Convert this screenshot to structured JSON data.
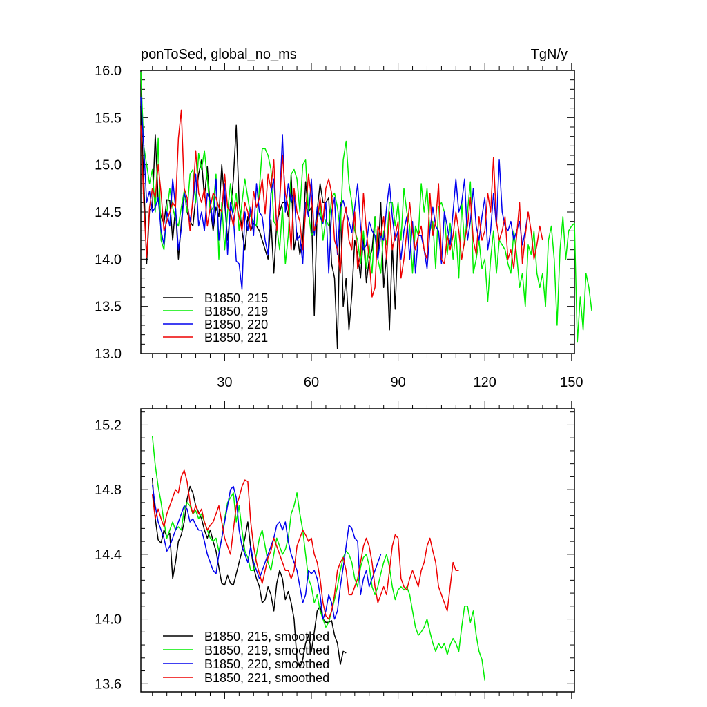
{
  "figure": {
    "title_left": "ponToSed, global_no_ms",
    "title_right": "TgN/y"
  },
  "chart_data": [
    {
      "type": "line",
      "title": "ponToSed, global_no_ms",
      "units": "TgN/y",
      "xlim": [
        1,
        151
      ],
      "ylim": [
        13.0,
        16.0
      ],
      "x_ticks": [
        30,
        60,
        90,
        120,
        150
      ],
      "x_tick_labels": [
        "30",
        "60",
        "90",
        "120",
        "150"
      ],
      "y_ticks": [
        13.0,
        13.5,
        14.0,
        14.5,
        15.0,
        15.5,
        16.0
      ],
      "y_tick_labels": [
        "13.0",
        "13.5",
        "14.0",
        "14.5",
        "15.0",
        "15.5",
        "16.0"
      ],
      "legend_position": "bottom-left",
      "series": [
        {
          "name": "B1850, 215",
          "color": "#000000",
          "x_start": 1,
          "values": [
            15.62,
            14.85,
            13.95,
            14.52,
            14.55,
            15.32,
            14.62,
            14.45,
            14.38,
            14.63,
            14.62,
            14.2,
            14.55,
            14.0,
            14.38,
            14.72,
            14.5,
            14.4,
            14.35,
            14.65,
            14.9,
            15.05,
            14.65,
            14.98,
            14.55,
            14.3,
            14.55,
            14.45,
            15.0,
            14.6,
            14.2,
            14.5,
            14.85,
            15.42,
            14.6,
            14.3,
            14.1,
            14.45,
            14.3,
            14.38,
            14.35,
            14.3,
            14.2,
            14.1,
            14.0,
            14.42,
            13.85,
            14.38,
            14.5,
            14.6,
            14.6,
            14.45,
            14.9,
            14.1,
            14.28,
            14.05,
            14.2,
            14.82,
            14.5,
            14.55,
            13.4,
            14.52,
            14.8,
            14.6,
            14.6,
            14.65,
            13.95,
            13.8,
            13.05,
            14.6,
            13.5,
            13.8,
            13.25,
            13.62,
            14.2,
            14.05,
            13.8,
            14.25,
            13.75,
            14.0,
            14.1,
            14.45,
            14.0,
            14.6,
            13.7,
            14.05,
            13.25,
            14.15,
            13.47,
            14.3
          ]
        },
        {
          "name": "B1850, 219",
          "color": "#00ee00",
          "x_start": 1,
          "values": [
            15.98,
            15.2,
            15.0,
            14.8,
            14.95,
            14.5,
            15.28,
            14.2,
            14.1,
            14.5,
            14.75,
            14.55,
            14.42,
            14.35,
            14.55,
            14.72,
            14.5,
            14.9,
            14.95,
            14.6,
            15.12,
            14.95,
            15.15,
            14.85,
            14.5,
            14.55,
            14.9,
            14.0,
            14.6,
            14.1,
            14.5,
            14.8,
            14.5,
            14.7,
            14.3,
            14.6,
            14.85,
            14.65,
            14.45,
            14.4,
            14.35,
            14.75,
            15.17,
            15.17,
            15.1,
            14.95,
            14.4,
            14.35,
            14.1,
            14.55,
            13.95,
            14.25,
            14.9,
            14.95,
            14.85,
            14.5,
            15.0,
            15.05,
            14.5,
            14.25,
            14.3,
            14.4,
            14.6,
            14.2,
            14.42,
            14.35,
            14.65,
            14.7,
            14.55,
            14.3,
            15.05,
            15.25,
            14.8,
            14.6,
            14.3,
            14.2,
            13.95,
            14.3,
            13.9,
            14.15,
            13.85,
            14.45,
            14.0,
            13.85,
            14.3,
            14.15,
            14.6,
            14.6,
            14.35,
            14.6,
            14.2,
            14.75,
            14.5,
            14.35,
            13.85,
            14.35,
            14.25,
            14.8,
            14.5,
            14.75,
            14.3,
            14.4,
            13.9,
            14.55,
            14.6,
            14.5,
            14.05,
            14.38,
            14.0,
            14.3,
            13.8,
            14.6,
            14.15,
            14.5,
            14.82,
            13.85,
            14.0,
            14.2,
            13.9,
            14.0,
            13.55,
            14.0,
            14.3,
            13.85,
            14.2,
            14.15,
            14.1,
            13.95,
            13.85,
            14.3,
            14.05,
            13.7,
            13.85,
            13.5,
            14.15,
            14.05,
            14.3,
            13.85,
            13.7,
            13.85,
            13.5,
            14.2,
            14.35,
            14.0,
            13.3,
            14.1,
            14.45,
            14.0,
            14.3,
            14.35,
            14.38,
            13.12,
            13.6,
            13.25,
            13.85,
            13.7,
            13.45
          ]
        },
        {
          "name": "B1850, 220",
          "color": "#0000ee",
          "x_start": 1,
          "values": [
            15.72,
            15.2,
            14.6,
            14.72,
            14.5,
            14.55,
            14.65,
            14.3,
            14.15,
            14.5,
            14.35,
            14.85,
            14.55,
            14.1,
            14.32,
            14.7,
            14.6,
            14.4,
            14.6,
            14.9,
            14.35,
            14.5,
            14.3,
            14.7,
            14.62,
            14.35,
            14.85,
            14.2,
            14.5,
            14.8,
            14.05,
            14.6,
            14.45,
            13.98,
            13.95,
            13.68,
            14.5,
            14.3,
            14.55,
            14.25,
            14.8,
            14.5,
            14.45,
            14.2,
            14.05,
            14.7,
            14.85,
            14.35,
            14.6,
            15.32,
            14.5,
            14.8,
            14.6,
            14.72,
            14.2,
            14.25,
            13.95,
            14.6,
            14.45,
            14.85,
            14.25,
            14.55,
            14.45,
            14.38,
            14.6,
            13.85,
            14.5,
            14.65,
            14.05,
            14.55,
            14.62,
            14.5,
            14.4,
            14.28,
            14.55,
            14.8,
            14.35,
            14.1,
            14.15,
            14.4,
            14.3,
            14.25,
            14.0,
            14.25,
            14.2,
            14.55,
            14.8,
            14.45,
            14.2,
            14.3,
            14.0,
            14.3,
            14.45,
            14.0,
            14.4,
            13.85,
            14.25,
            14.25,
            14.1,
            13.9,
            14.3,
            14.55,
            14.35,
            14.3,
            13.95,
            14.5,
            14.35,
            14.15,
            14.5,
            14.85,
            14.5,
            14.6,
            14.85,
            14.2,
            14.4,
            14.75,
            14.35,
            14.2,
            14.45,
            14.65,
            14.1,
            14.3,
            14.7,
            14.35,
            15.05,
            14.5,
            14.35,
            14.3,
            14.4,
            14.2,
            14.3,
            14.4,
            14.15,
            14.3,
            14.5
          ]
        },
        {
          "name": "B1850, 221",
          "color": "#ee0000",
          "x_start": 1,
          "values": [
            15.42,
            14.6,
            14.02,
            14.55,
            14.75,
            14.65,
            15.0,
            14.7,
            14.3,
            14.4,
            14.5,
            14.6,
            14.55,
            15.28,
            15.58,
            14.75,
            14.65,
            14.3,
            14.65,
            15.15,
            14.7,
            14.6,
            14.75,
            14.35,
            14.55,
            14.7,
            14.65,
            14.55,
            14.5,
            14.9,
            14.55,
            14.5,
            14.35,
            14.6,
            14.45,
            14.3,
            14.6,
            14.5,
            14.3,
            14.72,
            14.55,
            14.65,
            14.85,
            14.48,
            14.9,
            14.75,
            15.05,
            14.3,
            14.6,
            15.1,
            14.7,
            14.55,
            14.1,
            14.75,
            14.5,
            14.4,
            14.1,
            14.5,
            14.9,
            14.65,
            14.3,
            14.4,
            14.65,
            14.4,
            14.75,
            14.85,
            14.7,
            14.2,
            14.1,
            13.85,
            14.4,
            14.55,
            14.2,
            14.1,
            14.5,
            13.9,
            14.05,
            14.7,
            14.3,
            14.0,
            13.6,
            13.7,
            14.35,
            14.25,
            14.45,
            14.0,
            14.5,
            14.1,
            14.25,
            14.4,
            13.8,
            14.0,
            14.3,
            14.6,
            14.3,
            14.1,
            14.25,
            14.35,
            14.1,
            14.0,
            14.7,
            14.25,
            14.4,
            14.8,
            14.0,
            13.95,
            14.25,
            14.1,
            14.25,
            14.5,
            14.3,
            14.0,
            14.2,
            14.35,
            14.65,
            14.2,
            14.05,
            14.45,
            14.2,
            14.3,
            14.7,
            14.5,
            15.08,
            14.4,
            14.2,
            14.3,
            14.45,
            14.0,
            14.1,
            13.9,
            14.25,
            14.6,
            13.95,
            14.25,
            14.5,
            14.3,
            14.0,
            14.15,
            14.35,
            14.2
          ]
        }
      ]
    },
    {
      "type": "line",
      "title": "",
      "units": "TgN/y",
      "xlim": [
        1,
        151
      ],
      "ylim": [
        13.55,
        15.3
      ],
      "x_ticks": [
        30,
        60,
        90,
        120,
        150
      ],
      "y_ticks": [
        13.6,
        14.0,
        14.4,
        14.8,
        15.2
      ],
      "y_tick_labels": [
        "13.6",
        "14.0",
        "14.4",
        "14.8",
        "15.2"
      ],
      "legend_position": "bottom-left",
      "series": [
        {
          "name": "B1850, 215, smoothed",
          "color": "#000000",
          "x_start": 5,
          "values": [
            14.87,
            14.62,
            14.49,
            14.47,
            14.55,
            14.51,
            14.53,
            14.25,
            14.35,
            14.48,
            14.52,
            14.6,
            14.74,
            14.82,
            14.78,
            14.7,
            14.66,
            14.62,
            14.55,
            14.5,
            14.55,
            14.48,
            14.42,
            14.32,
            14.22,
            14.21,
            14.27,
            14.22,
            14.21,
            14.28,
            14.35,
            14.42,
            14.5,
            14.6,
            14.44,
            14.32,
            14.25,
            14.2,
            14.1,
            14.12,
            14.2,
            14.15,
            14.05,
            14.22,
            14.3,
            14.25,
            14.12,
            14.17,
            14.1,
            14.0,
            13.75,
            13.7,
            13.75,
            13.85,
            13.9,
            13.8,
            13.92,
            14.05,
            14.08,
            14.0,
            13.98,
            13.98,
            13.99,
            13.9,
            13.85,
            13.72,
            13.8,
            13.79
          ]
        },
        {
          "name": "B1850, 219",
          "name_label": "B1850, 219, smoothed",
          "color": "#00ee00",
          "x_start": 5,
          "values": [
            15.13,
            14.95,
            14.82,
            14.72,
            14.6,
            14.5,
            14.55,
            14.6,
            14.55,
            14.57,
            14.55,
            14.68,
            14.72,
            14.7,
            14.65,
            14.67,
            14.62,
            14.65,
            14.6,
            14.55,
            14.5,
            14.48,
            14.5,
            14.42,
            14.5,
            14.62,
            14.72,
            14.75,
            14.78,
            14.6,
            14.7,
            14.55,
            14.42,
            14.38,
            14.3,
            14.3,
            14.4,
            14.5,
            14.55,
            14.45,
            14.35,
            14.3,
            14.4,
            14.5,
            14.45,
            14.4,
            14.43,
            14.5,
            14.65,
            14.7,
            14.78,
            14.65,
            14.55,
            14.4,
            14.25,
            14.2,
            14.1,
            14.15,
            14.05,
            14.0,
            13.95,
            13.98,
            14.05,
            14.12,
            14.2,
            14.3,
            14.38,
            14.42,
            14.4,
            14.35,
            14.25,
            14.2,
            14.32,
            14.38,
            14.4,
            14.33,
            14.2,
            14.15,
            14.2,
            14.28,
            14.35,
            14.4,
            14.32,
            14.2,
            14.12,
            14.18,
            14.2,
            14.18,
            14.2,
            14.15,
            14.05,
            13.95,
            13.9,
            13.92,
            13.95,
            14.0,
            13.92,
            13.85,
            13.8,
            13.85,
            13.82,
            13.85,
            13.78,
            13.84,
            13.88,
            13.85,
            13.8,
            13.95,
            14.08,
            14.08,
            13.98,
            14.05,
            13.9,
            13.8,
            13.75,
            13.62
          ]
        },
        {
          "name": "B1850, 220",
          "name_label": "B1850, 220, smoothed",
          "color": "#0000ee",
          "x_start": 5,
          "values": [
            14.83,
            14.7,
            14.6,
            14.55,
            14.5,
            14.42,
            14.45,
            14.5,
            14.55,
            14.6,
            14.65,
            14.7,
            14.68,
            14.6,
            14.62,
            14.58,
            14.55,
            14.55,
            14.48,
            14.4,
            14.35,
            14.3,
            14.28,
            14.4,
            14.5,
            14.6,
            14.7,
            14.8,
            14.82,
            14.75,
            14.55,
            14.45,
            14.4,
            14.35,
            14.45,
            14.35,
            14.3,
            14.25,
            14.3,
            14.35,
            14.4,
            14.45,
            14.5,
            14.58,
            14.6,
            14.55,
            14.6,
            14.48,
            14.4,
            14.35,
            14.3,
            14.2,
            14.1,
            14.15,
            14.3,
            14.28,
            14.3,
            14.25,
            14.15,
            14.0,
            14.05,
            14.15,
            14.1,
            14.0,
            14.05,
            14.2,
            14.32,
            14.45,
            14.58,
            14.56,
            14.5,
            14.48,
            14.15,
            14.25,
            14.3,
            14.2,
            14.25,
            14.3,
            14.35,
            14.4
          ]
        },
        {
          "name": "B1850, 221",
          "name_label": "B1850, 221, smoothed",
          "color": "#ee0000",
          "x_start": 5,
          "values": [
            14.77,
            14.62,
            14.68,
            14.62,
            14.57,
            14.65,
            14.7,
            14.75,
            14.8,
            14.78,
            14.88,
            14.92,
            14.85,
            14.72,
            14.65,
            14.7,
            14.65,
            14.68,
            14.6,
            14.55,
            14.58,
            14.6,
            14.65,
            14.7,
            14.6,
            14.5,
            14.45,
            14.4,
            14.55,
            14.7,
            14.75,
            14.82,
            14.86,
            14.85,
            14.6,
            14.45,
            14.35,
            14.28,
            14.22,
            14.3,
            14.38,
            14.42,
            14.5,
            14.45,
            14.4,
            14.35,
            14.3,
            14.3,
            14.25,
            14.3,
            14.45,
            14.5,
            14.55,
            14.52,
            14.48,
            14.5,
            14.4,
            14.35,
            14.25,
            14.1,
            14.02,
            14.0,
            14.05,
            14.15,
            14.3,
            14.35,
            14.38,
            14.3,
            14.15,
            14.15,
            14.2,
            14.25,
            14.35,
            14.45,
            14.5,
            14.45,
            14.35,
            14.2,
            14.1,
            14.15,
            14.2,
            14.15,
            14.3,
            14.45,
            14.52,
            14.5,
            14.25,
            14.2,
            14.18,
            14.25,
            14.3,
            14.25,
            14.2,
            14.3,
            14.35,
            14.45,
            14.5,
            14.42,
            14.35,
            14.2,
            14.15,
            14.1,
            14.05,
            14.2,
            14.35,
            14.3,
            14.3
          ]
        }
      ]
    }
  ]
}
